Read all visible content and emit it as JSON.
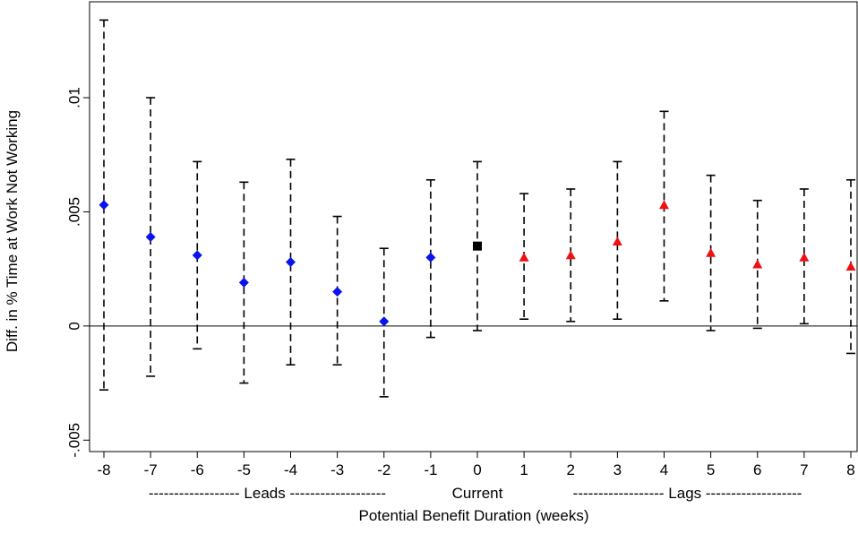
{
  "chart_data": {
    "type": "scatter",
    "subtype": "coefficient plot with confidence intervals",
    "xlabel": "Potential Benefit Duration (weeks)",
    "ylabel": "Diff. in % Time at Work Not Working",
    "x_ticks": [
      "-8",
      "-7",
      "-6",
      "-5",
      "-4",
      "-3",
      "-2",
      "-1",
      "0",
      "1",
      "2",
      "3",
      "4",
      "5",
      "6",
      "7",
      "8"
    ],
    "y_ticks": [
      {
        "value": -0.005,
        "label": "-.005"
      },
      {
        "value": 0,
        "label": "0"
      },
      {
        "value": 0.005,
        "label": ".005"
      },
      {
        "value": 0.01,
        "label": ".01"
      }
    ],
    "xlim": [
      -8,
      8
    ],
    "ylim": [
      -0.0055,
      0.0142
    ],
    "reference_line_y": 0,
    "grid": false,
    "group_labels": [
      {
        "text": "------------------ Leads -------------------",
        "from": -8,
        "to": -1
      },
      {
        "text": "Current",
        "from": 0,
        "to": 0
      },
      {
        "text": "------------------ Lags -------------------",
        "from": 1,
        "to": 8
      }
    ],
    "series": [
      {
        "marker": "diamond",
        "color": "#0a12ee",
        "points": [
          {
            "x": -8,
            "y": 0.0053,
            "lo": -0.0028,
            "hi": 0.0134
          },
          {
            "x": -7,
            "y": 0.0039,
            "lo": -0.0022,
            "hi": 0.01
          },
          {
            "x": -6,
            "y": 0.0031,
            "lo": -0.001,
            "hi": 0.0072
          },
          {
            "x": -5,
            "y": 0.0019,
            "lo": -0.0025,
            "hi": 0.0063
          },
          {
            "x": -4,
            "y": 0.0028,
            "lo": -0.0017,
            "hi": 0.0073
          },
          {
            "x": -3,
            "y": 0.0015,
            "lo": -0.0017,
            "hi": 0.0048
          },
          {
            "x": -2,
            "y": 0.0002,
            "lo": -0.0031,
            "hi": 0.0034
          },
          {
            "x": -1,
            "y": 0.003,
            "lo": -0.0005,
            "hi": 0.0064
          }
        ]
      },
      {
        "marker": "square",
        "color": "#000000",
        "points": [
          {
            "x": 0,
            "y": 0.0035,
            "lo": -0.0002,
            "hi": 0.0072
          }
        ]
      },
      {
        "marker": "triangle",
        "color": "#ee1111",
        "points": [
          {
            "x": 1,
            "y": 0.003,
            "lo": 0.0003,
            "hi": 0.0058
          },
          {
            "x": 2,
            "y": 0.0031,
            "lo": 0.0002,
            "hi": 0.006
          },
          {
            "x": 3,
            "y": 0.0037,
            "lo": 0.0003,
            "hi": 0.0072
          },
          {
            "x": 4,
            "y": 0.0053,
            "lo": 0.0011,
            "hi": 0.0094
          },
          {
            "x": 5,
            "y": 0.0032,
            "lo": -0.0002,
            "hi": 0.0066
          },
          {
            "x": 6,
            "y": 0.0027,
            "lo": -0.0001,
            "hi": 0.0055
          },
          {
            "x": 7,
            "y": 0.003,
            "lo": 0.0001,
            "hi": 0.006
          },
          {
            "x": 8,
            "y": 0.0026,
            "lo": -0.0012,
            "hi": 0.0064
          }
        ]
      }
    ]
  }
}
